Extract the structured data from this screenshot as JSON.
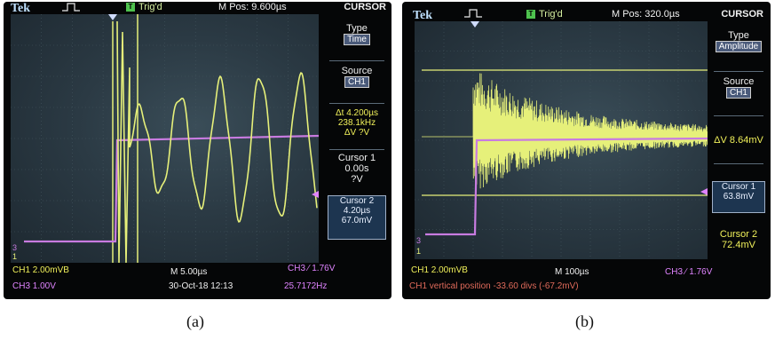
{
  "panel_a": {
    "brand": "Tek",
    "trig_indicator": "T",
    "trig_status": "Trig'd",
    "m_pos": "M Pos: 9.600µs",
    "menu_title": "CURSOR",
    "type_label": "Type",
    "type_value": "Time",
    "source_label": "Source",
    "source_value": "CH1",
    "delta_t": "Δt 4.200µs",
    "inv_delta_t": "238.1kHz",
    "delta_v": "ΔV ?V",
    "cursor1_label": "Cursor 1",
    "cursor1_time": "0.00s",
    "cursor1_value": "?V",
    "cursor2_label": "Cursor 2",
    "cursor2_time": "4.20µs",
    "cursor2_value": "67.0mV",
    "ch1_scale": "CH1  2.00mVB",
    "ch3_scale": "CH3  1.00V",
    "timebase": "M 5.00µs",
    "datetime": "30-Oct-18 12:13",
    "trigger_setting": "CH3 ∕ 1.76V",
    "frequency": "25.7172Hz",
    "ch_marker_1": "1",
    "ch_marker_3": "3",
    "caption": "(a)"
  },
  "panel_b": {
    "brand": "Tek",
    "trig_indicator": "T",
    "trig_status": "Trig'd",
    "m_pos": "M Pos: 320.0µs",
    "menu_title": "CURSOR",
    "type_label": "Type",
    "type_value": "Amplitude",
    "source_label": "Source",
    "source_value": "CH1",
    "delta_v": "ΔV 8.64mV",
    "cursor1_label": "Cursor 1",
    "cursor1_value": "63.8mV",
    "cursor2_label": "Cursor 2",
    "cursor2_value": "72.4mV",
    "ch1_scale": "CH1  2.00mVB",
    "timebase": "M 100µs",
    "trigger_setting": "CH3 ∕ 1.76V",
    "message": "CH1 vertical position -33.60 divs (-67.2mV)",
    "ch_marker_1": "1",
    "ch_marker_3": "3",
    "caption": "(b)"
  },
  "colors": {
    "ch1_trace": "#e6f07a",
    "ch3_trace": "#c87be0",
    "cursor_line": "#e6f07a",
    "screen_bg": "#2b3a44"
  }
}
